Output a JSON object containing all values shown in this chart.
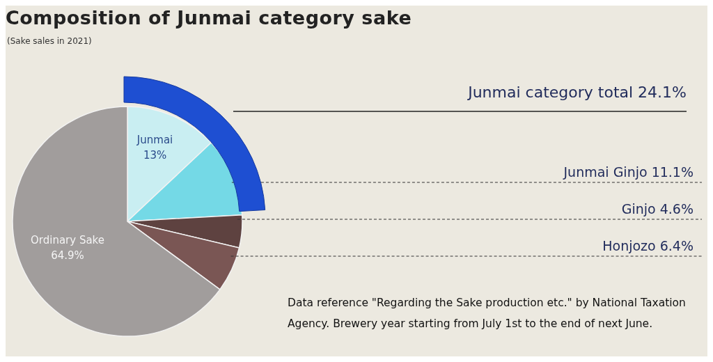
{
  "chart_data": {
    "type": "pie",
    "title": "Composition of Junmai category sake",
    "subtitle": "(Sake sales in 2021)",
    "categories": [
      "Junmai",
      "Junmai Ginjo",
      "Ginjo",
      "Honjozo",
      "Ordinary Sake"
    ],
    "values": [
      13,
      11.1,
      4.6,
      6.4,
      64.9
    ],
    "value_labels": [
      "13%",
      "11.1%",
      "4.6%",
      "6.4%",
      "64.9%"
    ],
    "colors": [
      "#c9eef2",
      "#74d9e6",
      "#5e4240",
      "#7a5654",
      "#a19d9c"
    ],
    "annotations": [
      "Junmai category total 24.1%",
      "Data reference \"Regarding the Sake production etc.\" by National Taxation Agency. Brewery year starting from July 1st to the end of next June."
    ]
  }
}
